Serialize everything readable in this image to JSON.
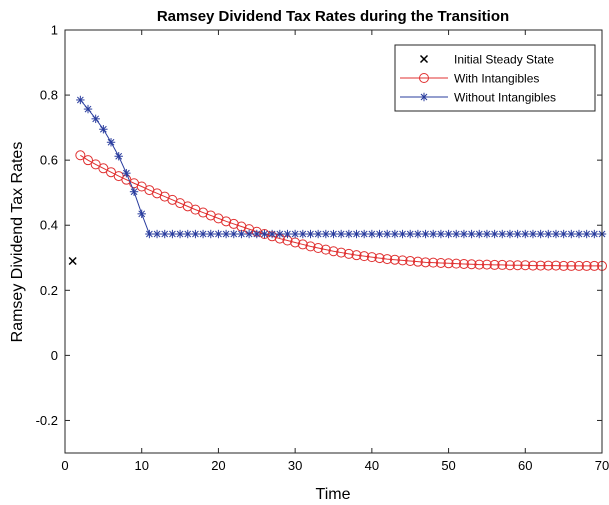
{
  "chart_data": {
    "type": "line",
    "title": "Ramsey Dividend Tax Rates during the Transition",
    "xlabel": "Time",
    "ylabel": "Ramsey Dividend Tax Rates",
    "xlim": [
      0,
      70
    ],
    "ylim": [
      -0.3,
      1
    ],
    "xticks": [
      0,
      10,
      20,
      30,
      40,
      50,
      60,
      70
    ],
    "xtick_labels": [
      "0",
      "10",
      "20",
      "30",
      "40",
      "50",
      "60",
      "70"
    ],
    "yticks": [
      -0.2,
      0,
      0.2,
      0.4,
      0.6,
      0.8,
      1
    ],
    "ytick_labels": [
      "-0.2",
      "0",
      "0.2",
      "0.4",
      "0.6",
      "0.8",
      "1"
    ],
    "grid": false,
    "legend_position": "top-right",
    "series": [
      {
        "name": "Initial Steady State",
        "color": "#000000",
        "marker": "x",
        "line": false,
        "x": [
          1
        ],
        "y": [
          0.29
        ]
      },
      {
        "name": "With Intangibles",
        "color": "#e03030",
        "marker": "circle",
        "line": true,
        "x": [
          2,
          3,
          4,
          5,
          6,
          7,
          8,
          9,
          10,
          11,
          12,
          13,
          14,
          15,
          16,
          17,
          18,
          19,
          20,
          21,
          22,
          23,
          24,
          25,
          26,
          27,
          28,
          29,
          30,
          31,
          32,
          33,
          34,
          35,
          36,
          37,
          38,
          39,
          40,
          41,
          42,
          43,
          44,
          45,
          46,
          47,
          48,
          49,
          50,
          51,
          52,
          53,
          54,
          55,
          56,
          57,
          58,
          59,
          60,
          61,
          62,
          63,
          64,
          65,
          66,
          67,
          68,
          69,
          70
        ],
        "y": [
          0.615,
          0.6,
          0.587,
          0.575,
          0.563,
          0.551,
          0.54,
          0.529,
          0.519,
          0.508,
          0.498,
          0.488,
          0.478,
          0.468,
          0.458,
          0.448,
          0.439,
          0.43,
          0.421,
          0.412,
          0.404,
          0.396,
          0.388,
          0.38,
          0.373,
          0.366,
          0.359,
          0.353,
          0.347,
          0.341,
          0.335,
          0.33,
          0.325,
          0.32,
          0.316,
          0.312,
          0.308,
          0.305,
          0.302,
          0.299,
          0.296,
          0.294,
          0.292,
          0.29,
          0.288,
          0.286,
          0.285,
          0.284,
          0.283,
          0.282,
          0.281,
          0.28,
          0.279,
          0.279,
          0.278,
          0.278,
          0.277,
          0.277,
          0.277,
          0.276,
          0.276,
          0.276,
          0.276,
          0.275,
          0.275,
          0.275,
          0.275,
          0.275,
          0.275
        ]
      },
      {
        "name": "Without Intangibles",
        "color": "#2a3d9e",
        "marker": "asterisk",
        "line": true,
        "x": [
          2,
          3,
          4,
          5,
          6,
          7,
          8,
          9,
          10,
          11,
          12,
          13,
          14,
          15,
          16,
          17,
          18,
          19,
          20,
          21,
          22,
          23,
          24,
          25,
          26,
          27,
          28,
          29,
          30,
          31,
          32,
          33,
          34,
          35,
          36,
          37,
          38,
          39,
          40,
          41,
          42,
          43,
          44,
          45,
          46,
          47,
          48,
          49,
          50,
          51,
          52,
          53,
          54,
          55,
          56,
          57,
          58,
          59,
          60,
          61,
          62,
          63,
          64,
          65,
          66,
          67,
          68,
          69,
          70
        ],
        "y": [
          0.785,
          0.757,
          0.727,
          0.695,
          0.655,
          0.612,
          0.56,
          0.503,
          0.435,
          0.373,
          0.373,
          0.373,
          0.373,
          0.373,
          0.373,
          0.373,
          0.373,
          0.373,
          0.373,
          0.373,
          0.373,
          0.373,
          0.373,
          0.373,
          0.373,
          0.373,
          0.373,
          0.373,
          0.373,
          0.373,
          0.373,
          0.373,
          0.373,
          0.373,
          0.373,
          0.373,
          0.373,
          0.373,
          0.373,
          0.373,
          0.373,
          0.373,
          0.373,
          0.373,
          0.373,
          0.373,
          0.373,
          0.373,
          0.373,
          0.373,
          0.373,
          0.373,
          0.373,
          0.373,
          0.373,
          0.373,
          0.373,
          0.373,
          0.373,
          0.373,
          0.373,
          0.373,
          0.373,
          0.373,
          0.373,
          0.373,
          0.373,
          0.373,
          0.373
        ]
      }
    ]
  }
}
